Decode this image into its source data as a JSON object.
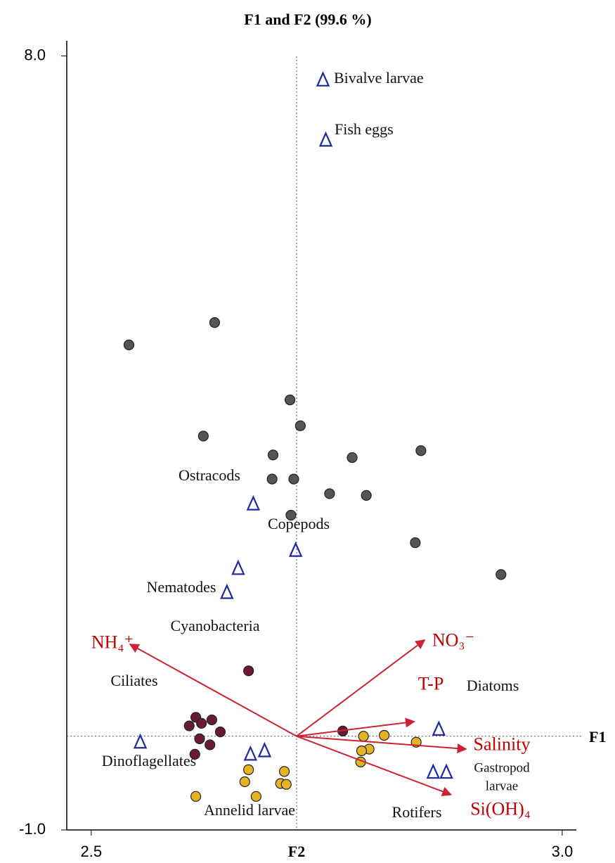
{
  "chart_data": {
    "type": "biplot",
    "title": "F1 and F2 (99.6 %)",
    "x_label": "F2",
    "y_label": "F1",
    "xlim": [
      2.474,
      3.015
    ],
    "ylim": [
      -1,
      8.16
    ],
    "xticks": [
      {
        "value": 2.5,
        "label": "2.5"
      },
      {
        "value": 3.0,
        "label": "3.0"
      }
    ],
    "yticks": [
      {
        "value": -1,
        "label": "-1.0"
      },
      {
        "value": 8,
        "label": "8.0"
      }
    ],
    "origin": [
      2.718,
      0.09
    ],
    "point_groups": [
      {
        "color": "#555555",
        "x": [
          2.54,
          2.631,
          2.619,
          2.711,
          2.722,
          2.693,
          2.692,
          2.715,
          2.777,
          2.85,
          2.753,
          2.792,
          2.712,
          2.844,
          2.935
        ],
        "y": [
          4.64,
          4.9,
          3.58,
          4.0,
          3.7,
          3.36,
          3.08,
          3.08,
          3.33,
          3.41,
          2.91,
          2.89,
          2.66,
          2.34,
          1.97
        ]
      },
      {
        "color": "#6b1a33",
        "x": [
          2.667,
          2.604,
          2.611,
          2.617,
          2.628,
          2.637,
          2.615,
          2.626,
          2.61,
          2.767
        ],
        "y": [
          0.85,
          0.21,
          0.31,
          0.24,
          0.28,
          0.14,
          0.06,
          -0.01,
          -0.12,
          0.15
        ]
      },
      {
        "color": "#e6b325",
        "x": [
          2.789,
          2.811,
          2.845,
          2.795,
          2.787,
          2.786,
          2.705,
          2.667,
          2.663,
          2.701,
          2.707,
          2.675,
          2.611
        ],
        "y": [
          0.09,
          0.1,
          0.02,
          -0.06,
          -0.08,
          -0.21,
          -0.32,
          -0.3,
          -0.44,
          -0.46,
          -0.47,
          -0.61,
          -0.61
        ]
      }
    ],
    "species_color": "#1f2a9e",
    "species": [
      {
        "label": "Bivalve  larvae",
        "x": 2.746,
        "y": 7.72
      },
      {
        "label": "Fish eggs",
        "x": 2.749,
        "y": 7.02
      },
      {
        "label": "Ostracods",
        "x": 2.672,
        "y": 2.79
      },
      {
        "label": "Copepods",
        "x": 2.717,
        "y": 2.25
      },
      {
        "label": "Nematodes",
        "x": 2.656,
        "y": 2.04
      },
      {
        "label": "Cyanobacteria",
        "x": 2.644,
        "y": 1.76
      },
      {
        "label": "Ciliates",
        "x": 2.552,
        "y": 0.02
      },
      {
        "label": "Diatoms",
        "x": 2.869,
        "y": 0.17
      },
      {
        "label": "Dinoflagellates",
        "x": 2.669,
        "y": -0.12
      },
      {
        "label": "Annelid larvae",
        "x": 2.684,
        "y": -0.08
      },
      {
        "label": "Rotifers",
        "x": 2.863,
        "y": -0.33
      },
      {
        "label": "Gastropod larvae",
        "x": 2.877,
        "y": -0.33
      }
    ],
    "vector_color": "#cc2233",
    "vectors": [
      {
        "label": "NH₄⁺",
        "x": 2.541,
        "y": 1.16
      },
      {
        "label": "NO₃⁻",
        "x": 2.854,
        "y": 1.21
      },
      {
        "label": "T-P",
        "x": 2.843,
        "y": 0.26
      },
      {
        "label": "Salinity",
        "x": 2.898,
        "y": -0.06
      },
      {
        "label": "Si(OH)₄",
        "x": 2.882,
        "y": -0.59
      }
    ]
  }
}
